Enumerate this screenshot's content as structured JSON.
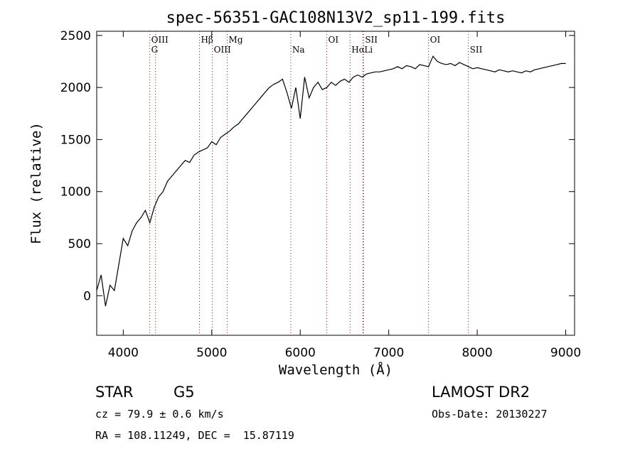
{
  "chart_data": {
    "type": "line",
    "title": "spec-56351-GAC108N13V2_sp11-199.fits",
    "xlabel": "Wavelength (Å)",
    "ylabel": "Flux (relative)",
    "xlim": [
      3700,
      9100
    ],
    "ylim": [
      -380,
      2540
    ],
    "xticks": [
      4000,
      5000,
      6000,
      7000,
      8000,
      9000
    ],
    "yticks": [
      0,
      500,
      1000,
      1500,
      2000,
      2500
    ],
    "grid": false,
    "series": [
      {
        "x": [
          3700,
          3750,
          3800,
          3850,
          3900,
          3950,
          4000,
          4050,
          4100,
          4150,
          4200,
          4250,
          4300,
          4350,
          4400,
          4450,
          4500,
          4550,
          4600,
          4650,
          4700,
          4750,
          4800,
          4850,
          4900,
          4950,
          5000,
          5050,
          5100,
          5150,
          5200,
          5250,
          5300,
          5350,
          5400,
          5450,
          5500,
          5550,
          5600,
          5650,
          5700,
          5750,
          5800,
          5850,
          5900,
          5950,
          6000,
          6050,
          6100,
          6150,
          6200,
          6250,
          6300,
          6350,
          6400,
          6450,
          6500,
          6550,
          6600,
          6650,
          6700,
          6750,
          6800,
          6850,
          6900,
          6950,
          7000,
          7050,
          7100,
          7150,
          7200,
          7250,
          7300,
          7350,
          7400,
          7450,
          7500,
          7550,
          7600,
          7650,
          7700,
          7750,
          7800,
          7850,
          7900,
          7950,
          8000,
          8050,
          8100,
          8150,
          8200,
          8250,
          8300,
          8350,
          8400,
          8450,
          8500,
          8550,
          8600,
          8650,
          8700,
          8750,
          8800,
          8850,
          8900,
          8950,
          9000
        ],
        "y": [
          50,
          200,
          -100,
          100,
          50,
          300,
          550,
          480,
          620,
          700,
          750,
          820,
          700,
          850,
          950,
          1000,
          1100,
          1150,
          1200,
          1250,
          1300,
          1280,
          1350,
          1380,
          1400,
          1420,
          1480,
          1450,
          1520,
          1550,
          1580,
          1620,
          1650,
          1700,
          1750,
          1800,
          1850,
          1900,
          1950,
          2000,
          2030,
          2050,
          2080,
          1950,
          1800,
          2000,
          1700,
          2100,
          1900,
          2000,
          2050,
          1980,
          2000,
          2050,
          2020,
          2060,
          2080,
          2050,
          2100,
          2120,
          2100,
          2130,
          2140,
          2150,
          2150,
          2160,
          2170,
          2180,
          2200,
          2180,
          2210,
          2200,
          2180,
          2220,
          2210,
          2200,
          2300,
          2250,
          2230,
          2220,
          2230,
          2210,
          2240,
          2220,
          2200,
          2180,
          2190,
          2180,
          2170,
          2160,
          2150,
          2170,
          2160,
          2150,
          2160,
          2150,
          2140,
          2160,
          2150,
          2170,
          2180,
          2190,
          2200,
          2210,
          2220,
          2230,
          2230
        ]
      }
    ],
    "lines": [
      {
        "x": 4300,
        "labels": [
          "OIII",
          "G"
        ]
      },
      {
        "x": 4364,
        "labels": []
      },
      {
        "x": 4861,
        "labels": [
          "Hβ"
        ]
      },
      {
        "x": 5007,
        "labels": [
          "OIII"
        ]
      },
      {
        "x": 5175,
        "labels": [
          "Mg"
        ]
      },
      {
        "x": 5893,
        "labels": [
          "Na"
        ]
      },
      {
        "x": 6300,
        "labels": [
          "OI"
        ]
      },
      {
        "x": 6563,
        "labels": [
          "Hα"
        ]
      },
      {
        "x": 6716,
        "labels": [
          "SII"
        ]
      },
      {
        "x": 6708,
        "labels": [
          "Li"
        ]
      },
      {
        "x": 7450,
        "labels": [
          "OI"
        ]
      },
      {
        "x": 7900,
        "labels": [
          "SII"
        ]
      }
    ]
  },
  "info": {
    "class_label": "STAR",
    "subclass": "G5",
    "survey": "LAMOST DR2",
    "cz": "cz = 79.9 ± 0.6 km/s",
    "obs_date": "Obs-Date: 20130227",
    "coords": "RA = 108.11249, DEC =  15.87119"
  }
}
